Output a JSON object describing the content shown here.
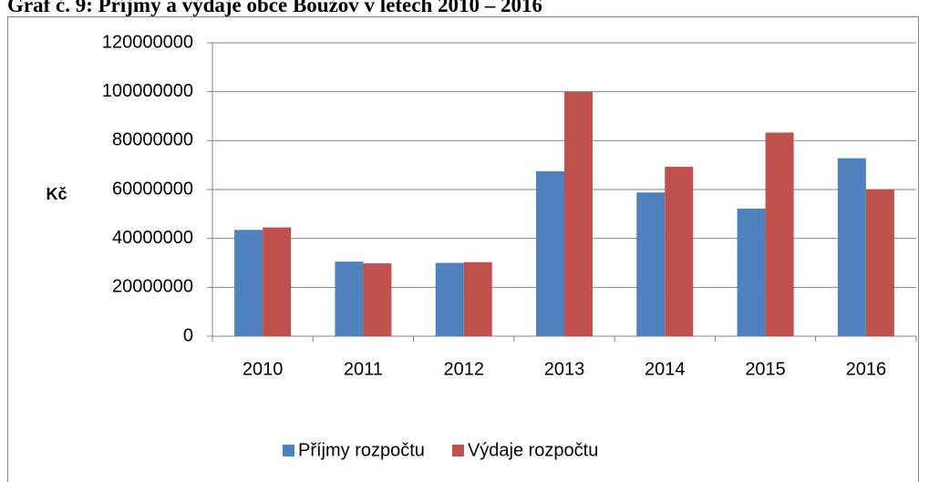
{
  "chart_data": {
    "type": "bar",
    "title": "Graf č. 9: Příjmy a výdaje obce Boužov v letech 2010 – 2016",
    "y_label": "Kč",
    "categories": [
      "2010",
      "2011",
      "2012",
      "2013",
      "2014",
      "2015",
      "2016"
    ],
    "series": [
      {
        "name": "Příjmy rozpočtu",
        "color": "#4f81bd",
        "values": [
          43500000,
          30500000,
          30000000,
          67500000,
          58800000,
          52200000,
          72800000
        ]
      },
      {
        "name": "Výdaje rozpočtu",
        "color": "#c0504d",
        "values": [
          44500000,
          29800000,
          30300000,
          100000000,
          69300000,
          83300000,
          60000000
        ]
      }
    ],
    "ylim": [
      0,
      120000000
    ],
    "yticks": [
      0,
      20000000,
      40000000,
      60000000,
      80000000,
      100000000,
      120000000
    ],
    "grid": true,
    "legend": "bottom"
  }
}
